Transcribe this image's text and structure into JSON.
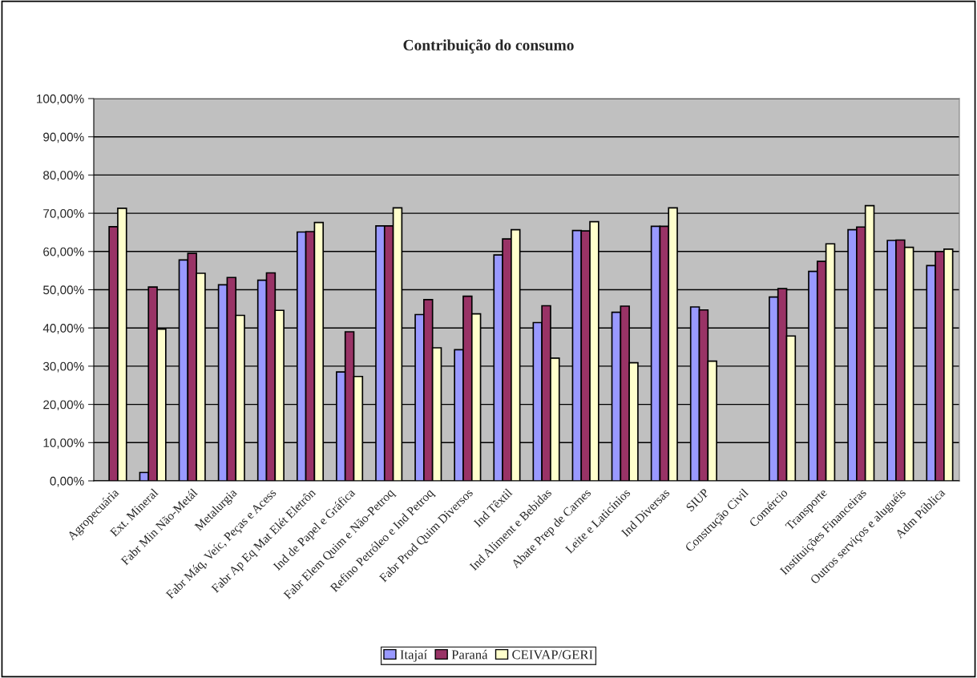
{
  "chart_data": {
    "type": "bar",
    "title": "Contribuição do consumo",
    "categories": [
      "Agropecuária",
      "Ext. Mineral",
      "Fabr Min Não-Metál",
      "Metalurgia",
      "Fabr Máq, Veíc, Peças e Acess",
      "Fabr Ap Eq Mat Elét Eletrôn",
      "Ind de Papel e Gráfica",
      "Fabr Elem Quim e Não-Petroq",
      "Refino Petróleo e Ind Petroq",
      "Fabr Prod Quim Diversos",
      "Ind Têxtil",
      "Ind Aliment e Bebidas",
      "Abate Prep de Carnes",
      "Leite e Laticínios",
      "Ind Diversas",
      "SIUP",
      "Construção Civil",
      "Comércio",
      "Transporte",
      "Instituições Financeiras",
      "Outros serviços e aluguéis",
      "Adm Pública"
    ],
    "series": [
      {
        "name": "Itajaí",
        "color": "#9999ff",
        "values": [
          null,
          2.2,
          57.8,
          51.3,
          52.5,
          65.1,
          28.5,
          66.7,
          43.5,
          34.3,
          59.1,
          41.4,
          65.5,
          44.1,
          66.6,
          45.5,
          null,
          48.1,
          54.8,
          65.7,
          62.9,
          56.3
        ]
      },
      {
        "name": "Paraná",
        "color": "#993366",
        "values": [
          66.5,
          50.7,
          59.5,
          53.2,
          54.4,
          65.2,
          39.0,
          66.7,
          47.4,
          48.3,
          63.3,
          45.8,
          65.4,
          45.7,
          66.6,
          44.7,
          null,
          50.3,
          57.4,
          66.4,
          63.0,
          60.0
        ]
      },
      {
        "name": "CEIVAP/GERI",
        "color": "#ffffcc",
        "values": [
          71.3,
          39.7,
          54.3,
          43.3,
          44.6,
          67.6,
          27.3,
          71.4,
          34.8,
          43.7,
          65.7,
          32.1,
          67.8,
          30.9,
          71.4,
          31.3,
          null,
          37.9,
          62.0,
          72.0,
          61.1,
          60.6
        ]
      }
    ],
    "ylim": [
      0,
      100
    ],
    "yticks": [
      {
        "value": 0,
        "label": "0,00%"
      },
      {
        "value": 10,
        "label": "10,00%"
      },
      {
        "value": 20,
        "label": "20,00%"
      },
      {
        "value": 30,
        "label": "30,00%"
      },
      {
        "value": 40,
        "label": "40,00%"
      },
      {
        "value": 50,
        "label": "50,00%"
      },
      {
        "value": 60,
        "label": "60,00%"
      },
      {
        "value": 70,
        "label": "70,00%"
      },
      {
        "value": 80,
        "label": "80,00%"
      },
      {
        "value": 90,
        "label": "90,00%"
      },
      {
        "value": 100,
        "label": "100,00%"
      }
    ],
    "grid": "y",
    "legend": "bottom"
  }
}
